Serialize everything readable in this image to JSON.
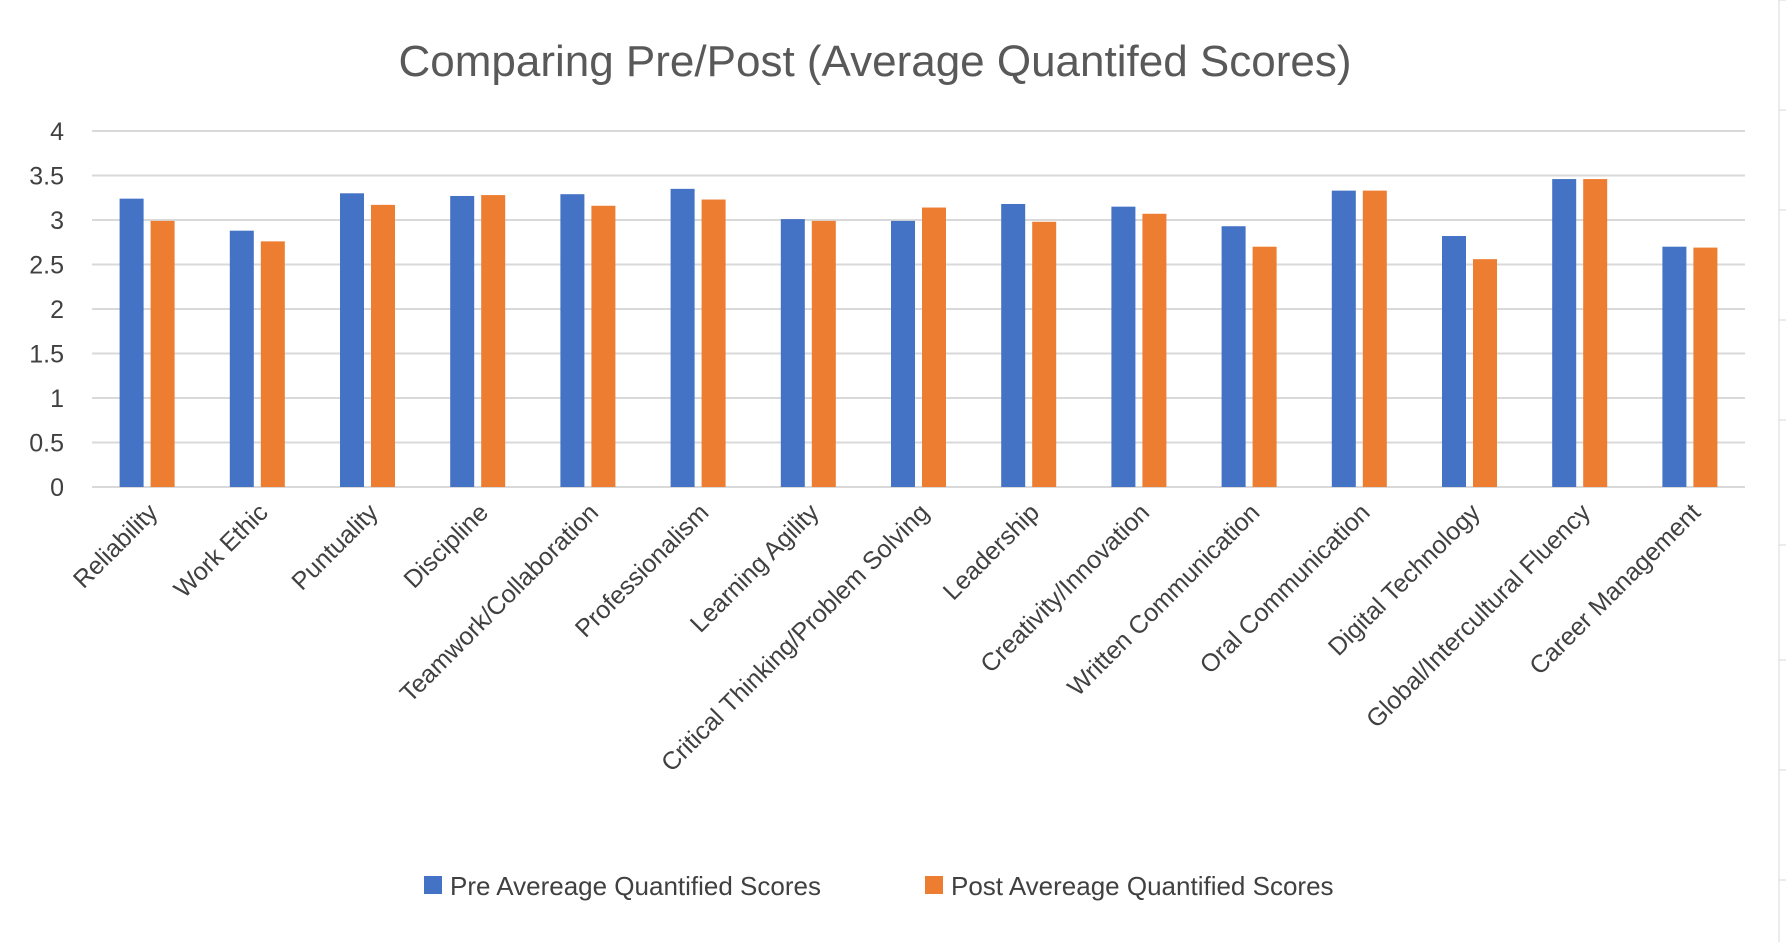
{
  "chart_data": {
    "type": "bar",
    "title": "Comparing Pre/Post (Average Quantifed Scores)",
    "xlabel": "",
    "ylabel": "",
    "ylim": [
      0,
      4
    ],
    "yticks": [
      "0",
      "0.5",
      "1",
      "1.5",
      "2",
      "2.5",
      "3",
      "3.5",
      "4"
    ],
    "grid": true,
    "legend_position": "bottom",
    "categories": [
      "Reliability",
      "Work Ethic",
      "Puntuality",
      "Discipline",
      "Teamwork/Collaboration",
      "Professionalism",
      "Learning Agility",
      "Critical Thinking/Problem Solving",
      "Leadership",
      "Creativity/Innovation",
      "Written Communication",
      "Oral Communication",
      "Digital Technology",
      "Global/Intercultural Fluency",
      "Career Management"
    ],
    "series": [
      {
        "name": "Pre Avereage Quantified Scores",
        "color": "#4472c4",
        "values": [
          3.24,
          2.88,
          3.3,
          3.27,
          3.29,
          3.35,
          3.01,
          2.99,
          3.18,
          3.15,
          2.93,
          3.33,
          2.82,
          3.46,
          2.7
        ]
      },
      {
        "name": "Post Avereage Quantified Scores",
        "color": "#ed7d31",
        "values": [
          2.99,
          2.76,
          3.17,
          3.28,
          3.16,
          3.23,
          2.99,
          3.14,
          2.98,
          3.07,
          2.7,
          3.33,
          2.56,
          3.46,
          2.69
        ]
      }
    ]
  }
}
